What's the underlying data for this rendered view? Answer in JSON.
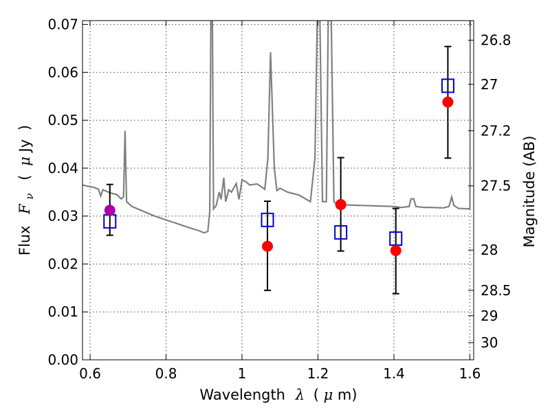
{
  "chart_data": {
    "type": "scatter",
    "xlabel_parts": [
      "Wavelength",
      "λ",
      "(",
      "μ",
      "m)"
    ],
    "ylabel_parts": [
      "Flux",
      "F",
      "ν",
      "(",
      "μ",
      "Jy",
      ")"
    ],
    "y2label": "Magnitude (AB)",
    "xlim": [
      0.58,
      1.61
    ],
    "ylim": [
      0.0,
      0.0708
    ],
    "grid": true,
    "x_ticks": [
      {
        "value": 0.6,
        "label": "0.6"
      },
      {
        "value": 0.8,
        "label": "0.8"
      },
      {
        "value": 1.0,
        "label": "1"
      },
      {
        "value": 1.2,
        "label": "1.2"
      },
      {
        "value": 1.4,
        "label": "1.4"
      },
      {
        "value": 1.6,
        "label": "1.6"
      }
    ],
    "y_ticks": [
      {
        "value": 0.0,
        "label": "0.00"
      },
      {
        "value": 0.01,
        "label": "0.01"
      },
      {
        "value": 0.02,
        "label": "0.02"
      },
      {
        "value": 0.03,
        "label": "0.03"
      },
      {
        "value": 0.04,
        "label": "0.04"
      },
      {
        "value": 0.05,
        "label": "0.05"
      },
      {
        "value": 0.06,
        "label": "0.06"
      },
      {
        "value": 0.07,
        "label": "0.07"
      }
    ],
    "y2_ticks": [
      {
        "flux": 0.0667,
        "label": "26.8"
      },
      {
        "flux": 0.0575,
        "label": "27"
      },
      {
        "flux": 0.0478,
        "label": "27.2"
      },
      {
        "flux": 0.0363,
        "label": "27.5"
      },
      {
        "flux": 0.0229,
        "label": "28"
      },
      {
        "flux": 0.0145,
        "label": "28.5"
      },
      {
        "flux": 0.0092,
        "label": "29"
      },
      {
        "flux": 0.0036,
        "label": "30"
      }
    ],
    "model_spectrum": {
      "color": "#808080",
      "points": [
        [
          0.58,
          0.0365
        ],
        [
          0.595,
          0.0362
        ],
        [
          0.61,
          0.036
        ],
        [
          0.622,
          0.0356
        ],
        [
          0.628,
          0.0342
        ],
        [
          0.634,
          0.0355
        ],
        [
          0.642,
          0.0352
        ],
        [
          0.655,
          0.0348
        ],
        [
          0.67,
          0.0345
        ],
        [
          0.682,
          0.0336
        ],
        [
          0.688,
          0.034
        ],
        [
          0.692,
          0.0478
        ],
        [
          0.696,
          0.033
        ],
        [
          0.71,
          0.032
        ],
        [
          0.74,
          0.031
        ],
        [
          0.77,
          0.03
        ],
        [
          0.8,
          0.0292
        ],
        [
          0.83,
          0.0284
        ],
        [
          0.86,
          0.0276
        ],
        [
          0.885,
          0.027
        ],
        [
          0.9,
          0.0265
        ],
        [
          0.91,
          0.0268
        ],
        [
          0.915,
          0.031
        ],
        [
          0.918,
          0.071
        ],
        [
          0.922,
          0.071
        ],
        [
          0.925,
          0.0315
        ],
        [
          0.932,
          0.0322
        ],
        [
          0.94,
          0.035
        ],
        [
          0.945,
          0.0335
        ],
        [
          0.952,
          0.038
        ],
        [
          0.957,
          0.033
        ],
        [
          0.965,
          0.0355
        ],
        [
          0.972,
          0.035
        ],
        [
          0.985,
          0.0368
        ],
        [
          0.992,
          0.0335
        ],
        [
          1.0,
          0.0375
        ],
        [
          1.01,
          0.0372
        ],
        [
          1.02,
          0.0365
        ],
        [
          1.04,
          0.0367
        ],
        [
          1.06,
          0.0356
        ],
        [
          1.068,
          0.042
        ],
        [
          1.075,
          0.0642
        ],
        [
          1.085,
          0.04
        ],
        [
          1.092,
          0.0353
        ],
        [
          1.1,
          0.0358
        ],
        [
          1.12,
          0.035
        ],
        [
          1.15,
          0.0344
        ],
        [
          1.18,
          0.033
        ],
        [
          1.192,
          0.042
        ],
        [
          1.198,
          0.071
        ],
        [
          1.205,
          0.071
        ],
        [
          1.212,
          0.033
        ],
        [
          1.222,
          0.033
        ],
        [
          1.227,
          0.071
        ],
        [
          1.235,
          0.071
        ],
        [
          1.242,
          0.033
        ],
        [
          1.25,
          0.0325
        ],
        [
          1.28,
          0.0323
        ],
        [
          1.32,
          0.0322
        ],
        [
          1.36,
          0.0321
        ],
        [
          1.4,
          0.032
        ],
        [
          1.42,
          0.0318
        ],
        [
          1.44,
          0.032
        ],
        [
          1.445,
          0.0336
        ],
        [
          1.452,
          0.0336
        ],
        [
          1.458,
          0.032
        ],
        [
          1.48,
          0.0318
        ],
        [
          1.5,
          0.0318
        ],
        [
          1.53,
          0.0317
        ],
        [
          1.545,
          0.032
        ],
        [
          1.552,
          0.034
        ],
        [
          1.558,
          0.0322
        ],
        [
          1.57,
          0.0316
        ],
        [
          1.6,
          0.0315
        ],
        [
          1.601,
          0.071
        ]
      ]
    },
    "series": [
      {
        "marker": "square",
        "color": "#0000cc",
        "points": [
          {
            "x": 0.652,
            "y": 0.0289
          },
          {
            "x": 1.067,
            "y": 0.0292
          },
          {
            "x": 1.26,
            "y": 0.0266
          },
          {
            "x": 1.405,
            "y": 0.0253
          },
          {
            "x": 1.542,
            "y": 0.0572
          }
        ]
      },
      {
        "marker": "circle",
        "color": "#ff0000",
        "points": [
          {
            "x": 0.652,
            "y": 0.0312,
            "yerr_low": 0.026,
            "yerr_high": 0.0366,
            "color": "#aa00aa"
          },
          {
            "x": 1.067,
            "y": 0.0237,
            "yerr_low": 0.0145,
            "yerr_high": 0.0331
          },
          {
            "x": 1.26,
            "y": 0.0324,
            "yerr_low": 0.0227,
            "yerr_high": 0.0422
          },
          {
            "x": 1.405,
            "y": 0.0228,
            "yerr_low": 0.0138,
            "yerr_high": 0.0316
          },
          {
            "x": 1.542,
            "y": 0.0538,
            "yerr_low": 0.0421,
            "yerr_high": 0.0654
          }
        ]
      }
    ]
  }
}
